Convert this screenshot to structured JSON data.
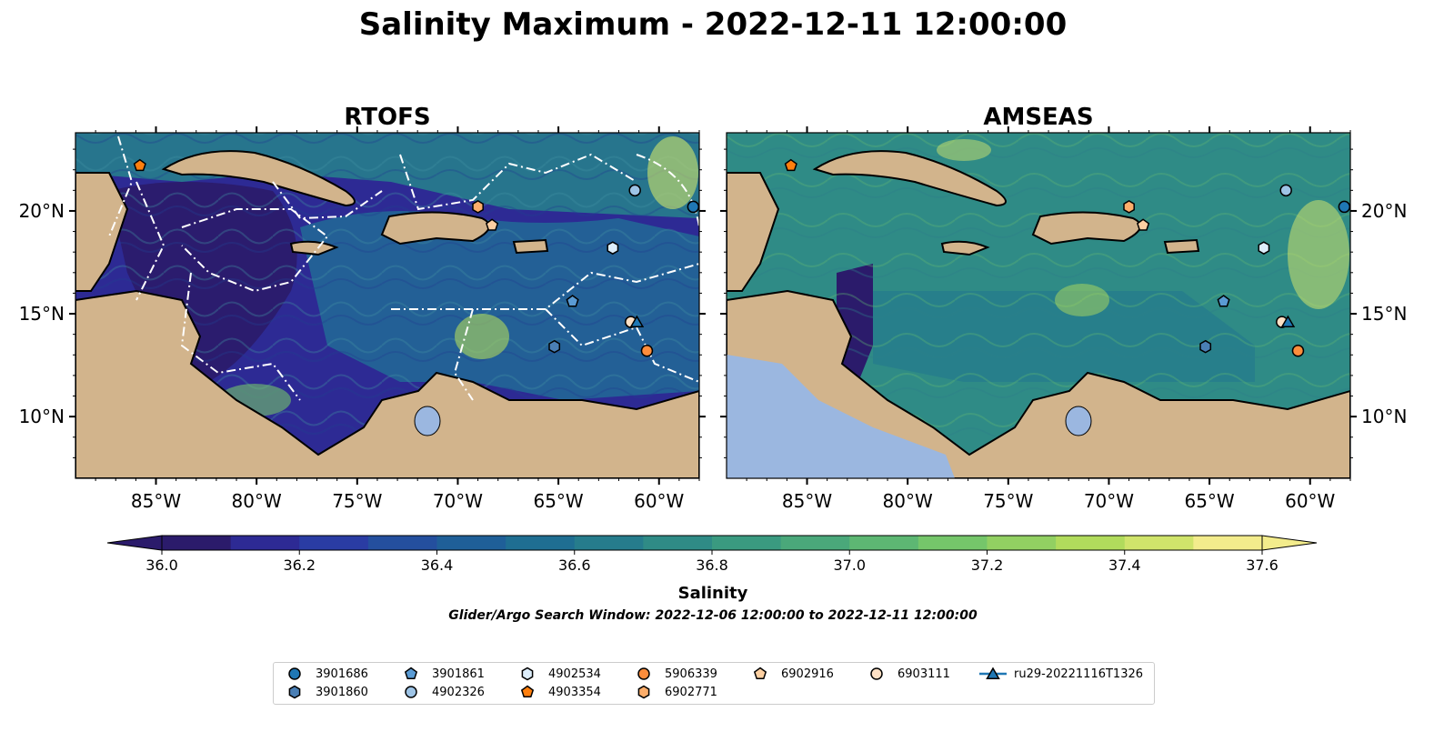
{
  "figure": {
    "title": "Salinity Maximum - 2022-12-11 12:00:00",
    "panels": [
      {
        "title": "RTOFS"
      },
      {
        "title": "AMSEAS"
      }
    ],
    "lat_ticks": [
      "20°N",
      "15°N",
      "10°N"
    ],
    "lon_ticks": [
      "85°W",
      "80°W",
      "75°W",
      "70°W",
      "65°W",
      "60°W"
    ],
    "colorbar": {
      "label": "Salinity",
      "ticks": [
        "36.0",
        "36.2",
        "36.4",
        "36.6",
        "36.8",
        "37.0",
        "37.2",
        "37.4",
        "37.6"
      ],
      "colors": [
        "#2b1b6b",
        "#2d2a94",
        "#2a3ca3",
        "#244f9e",
        "#1f5f98",
        "#1f6e92",
        "#267c8c",
        "#2f8b86",
        "#3a9a80",
        "#4aa87a",
        "#5db773",
        "#75c66a",
        "#92d062",
        "#b1db5c",
        "#d0e46b",
        "#f3ec8c"
      ]
    },
    "search_window": "Glider/Argo Search Window: 2022-12-06 12:00:00 to 2022-12-11 12:00:00"
  },
  "legend": [
    {
      "label": "3901686",
      "marker": "circle",
      "color": "#1f77b4"
    },
    {
      "label": "3901860",
      "marker": "hexagon",
      "color": "#4a7fb5"
    },
    {
      "label": "3901861",
      "marker": "pentagon",
      "color": "#5a9bd4"
    },
    {
      "label": "4902326",
      "marker": "circle",
      "color": "#9ec4e6"
    },
    {
      "label": "4902534",
      "marker": "hexagon",
      "color": "#ddeefb"
    },
    {
      "label": "4903354",
      "marker": "pentagon",
      "color": "#ff7f0e"
    },
    {
      "label": "5906339",
      "marker": "circle",
      "color": "#fd8d3c"
    },
    {
      "label": "6902771",
      "marker": "hexagon",
      "color": "#fdae6b"
    },
    {
      "label": "6902916",
      "marker": "pentagon",
      "color": "#fdd0a2"
    },
    {
      "label": "6903111",
      "marker": "circle",
      "color": "#fde0c5"
    },
    {
      "label": "ru29-20221116T1326",
      "marker": "triangle-line",
      "color": "#1f77b4"
    }
  ],
  "map_colors": {
    "land": "#d2b48c",
    "lake": "#9bb7e0",
    "ocean_low": "#2b1b6b"
  },
  "chart_data": {
    "type": "map",
    "extent": {
      "lon": [
        -89,
        -58
      ],
      "lat": [
        7,
        23.8
      ]
    },
    "observations": [
      {
        "id": "4903354",
        "lon": -85.8,
        "lat": 22.2
      },
      {
        "id": "6902771",
        "lon": -69.0,
        "lat": 20.2
      },
      {
        "id": "6902916",
        "lon": -68.3,
        "lat": 19.3
      },
      {
        "id": "4902326",
        "lon": -61.2,
        "lat": 21.0
      },
      {
        "id": "3901686",
        "lon": -58.3,
        "lat": 20.2
      },
      {
        "id": "4902534",
        "lon": -62.3,
        "lat": 18.2
      },
      {
        "id": "3901861",
        "lon": -64.3,
        "lat": 15.6
      },
      {
        "id": "6903111",
        "lon": -61.4,
        "lat": 14.6
      },
      {
        "id": "ru29-20221116T1326",
        "lon": -61.1,
        "lat": 14.6
      },
      {
        "id": "3901860",
        "lon": -65.2,
        "lat": 13.4
      },
      {
        "id": "5906339",
        "lon": -60.6,
        "lat": 13.2
      }
    ]
  }
}
